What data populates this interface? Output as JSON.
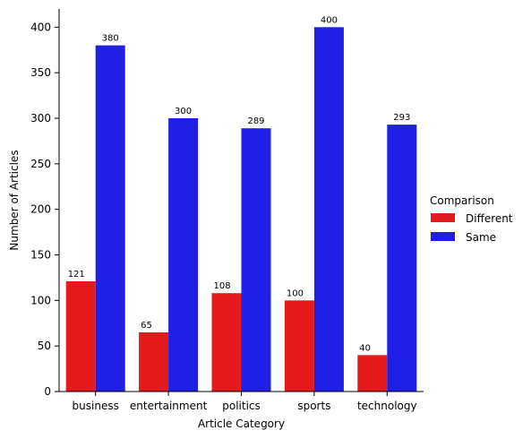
{
  "chart_data": {
    "type": "bar",
    "xlabel": "Article Category",
    "ylabel": "Number of Articles",
    "categories": [
      "business",
      "entertainment",
      "politics",
      "sports",
      "technology"
    ],
    "ylim": [
      0,
      420
    ],
    "yticks": [
      0,
      50,
      100,
      150,
      200,
      250,
      300,
      350,
      400
    ],
    "series": [
      {
        "name": "Different",
        "color": "#e41a1c",
        "values": [
          121,
          65,
          108,
          100,
          40
        ]
      },
      {
        "name": "Same",
        "color": "#1f1fe6",
        "values": [
          380,
          300,
          289,
          400,
          293
        ]
      }
    ],
    "legend": {
      "title": "Comparison",
      "placement": "right"
    },
    "grid": false
  }
}
